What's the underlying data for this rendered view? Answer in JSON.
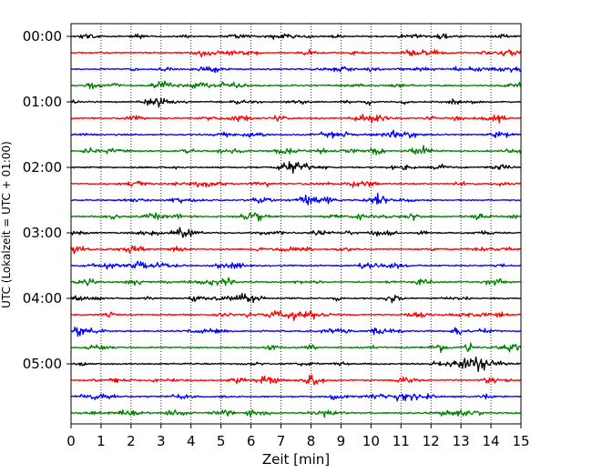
{
  "chart_data": {
    "type": "line",
    "title": "",
    "xlabel": "Zeit  [min]",
    "ylabel": "UTC (Lokalzeit = UTC + 01:00)",
    "xlim": [
      0,
      15
    ],
    "x_ticks": [
      0,
      1,
      2,
      3,
      4,
      5,
      6,
      7,
      8,
      9,
      10,
      11,
      12,
      13,
      14,
      15
    ],
    "y_tick_labels": [
      "00:00",
      "01:00",
      "02:00",
      "03:00",
      "04:00",
      "05:00"
    ],
    "trace_interval_min": 15,
    "trace_count": 24,
    "trace_colors": [
      "#000000",
      "#ff0000",
      "#0000ff",
      "#008000"
    ],
    "grid": "vertical-dotted",
    "legend": "none"
  }
}
